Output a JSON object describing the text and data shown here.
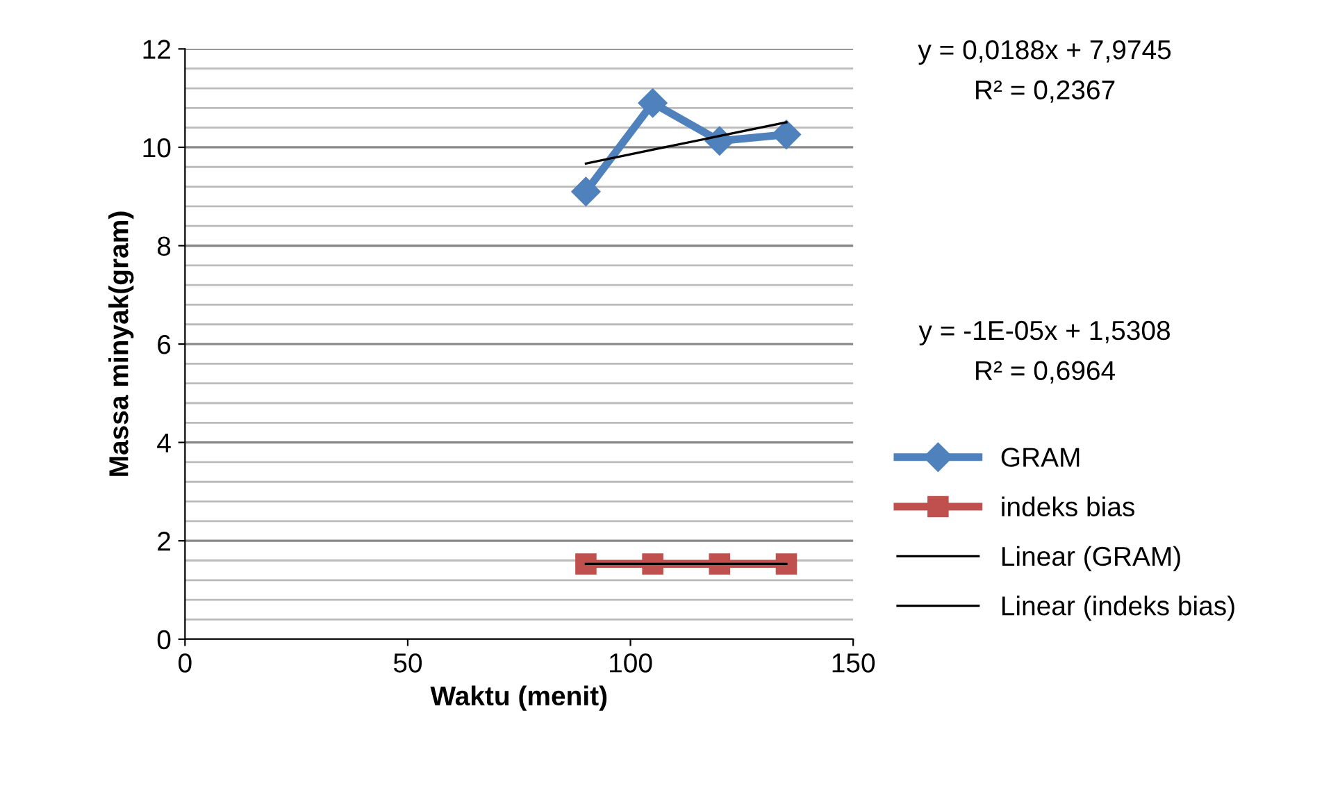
{
  "chart_data": {
    "type": "line",
    "xlabel": "Waktu (menit)",
    "ylabel": "Massa minyak(gram)",
    "x": [
      90,
      105,
      120,
      135
    ],
    "series": [
      {
        "name": "GRAM",
        "color": "#4f81bd",
        "values": [
          9.1,
          10.9,
          10.13,
          10.26
        ],
        "marker": "diamond"
      },
      {
        "name": "indeks bias",
        "color": "#c0504d",
        "values": [
          1.53,
          1.53,
          1.53,
          1.53
        ],
        "marker": "square"
      },
      {
        "name": "Linear (GRAM)",
        "color": "#000000",
        "values": [
          9.67,
          9.95,
          10.23,
          10.51
        ],
        "marker": "none"
      },
      {
        "name": "Linear (indeks bias)",
        "color": "#000000",
        "values": [
          1.53,
          1.53,
          1.53,
          1.53
        ],
        "marker": "none"
      }
    ],
    "xlim": [
      0,
      150
    ],
    "xticks": [
      0,
      50,
      100,
      150
    ],
    "ylim": [
      0,
      12
    ],
    "yticks": [
      0,
      2,
      4,
      6,
      8,
      10,
      12
    ],
    "grid": "y",
    "legend": "right",
    "annotations": [
      "y = 0,0188x + 7,9745",
      "R² = 0,2367",
      "y = -1E-05x + 1,5308",
      "R² = 0,6964"
    ]
  }
}
